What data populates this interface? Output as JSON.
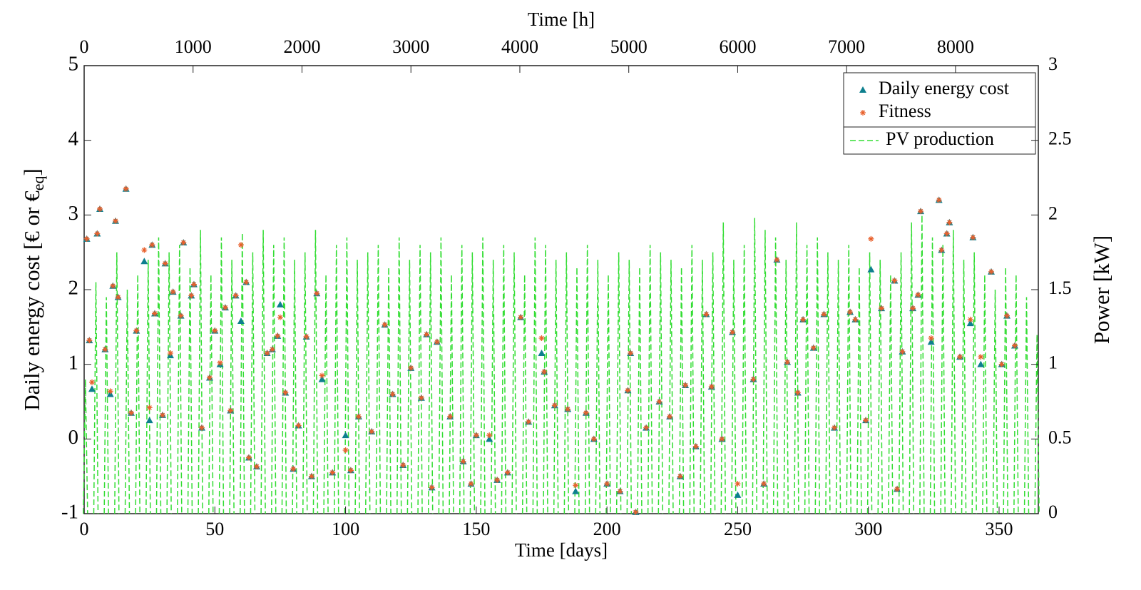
{
  "chart_data": {
    "type": "scatter",
    "xlabel": "Time [days]",
    "x2label": "Time [h]",
    "ylabel": [
      "Daily energy cost [€ or €",
      "eq",
      "]"
    ],
    "y2label": "Power [kW]",
    "xlim": [
      0,
      365
    ],
    "xticks": [
      0,
      50,
      100,
      150,
      200,
      250,
      300,
      350
    ],
    "x2lim": [
      0,
      8760
    ],
    "x2ticks": [
      0,
      1000,
      2000,
      3000,
      4000,
      5000,
      6000,
      7000,
      8000
    ],
    "ylim": [
      -1,
      5
    ],
    "yticks": [
      -1,
      0,
      1,
      2,
      3,
      4,
      5
    ],
    "y2lim": [
      0,
      3
    ],
    "y2ticks": [
      0,
      0.5,
      1,
      1.5,
      2,
      2.5,
      3
    ],
    "legend": "upper right",
    "series": [
      {
        "name": "Daily energy cost",
        "color": "#0e7f8e",
        "marker": "triangle",
        "x": [
          1,
          2,
          3,
          5,
          6,
          8,
          10,
          11,
          12,
          13,
          16,
          18,
          20,
          23,
          25,
          26,
          27,
          30,
          31,
          33,
          34,
          37,
          38,
          41,
          42,
          45,
          48,
          50,
          52,
          54,
          56,
          58,
          60,
          62,
          63,
          66,
          70,
          72,
          74,
          75,
          77,
          80,
          82,
          85,
          87,
          89,
          91,
          95,
          100,
          102,
          105,
          110,
          115,
          118,
          122,
          125,
          129,
          131,
          133,
          135,
          140,
          145,
          148,
          150,
          155,
          158,
          162,
          167,
          170,
          175,
          176,
          180,
          185,
          188,
          192,
          195,
          200,
          205,
          208,
          209,
          211,
          215,
          220,
          224,
          228,
          230,
          234,
          238,
          240,
          244,
          248,
          250,
          256,
          260,
          265,
          269,
          273,
          275,
          279,
          283,
          287,
          293,
          295,
          299,
          301,
          305,
          310,
          311,
          313,
          317,
          319,
          320,
          324,
          327,
          328,
          330,
          331,
          335,
          339,
          340,
          343,
          347,
          351,
          353,
          356
        ],
        "values": [
          2.68,
          1.32,
          0.67,
          2.75,
          3.08,
          1.2,
          0.6,
          2.05,
          2.92,
          1.9,
          3.35,
          0.35,
          1.45,
          2.38,
          0.25,
          2.6,
          1.68,
          0.32,
          2.35,
          1.12,
          1.97,
          1.65,
          2.63,
          1.92,
          2.07,
          0.15,
          0.82,
          1.45,
          1.0,
          1.76,
          0.38,
          1.92,
          1.58,
          2.1,
          -0.25,
          -0.37,
          1.15,
          1.2,
          1.38,
          1.8,
          0.62,
          -0.4,
          0.18,
          1.37,
          -0.5,
          1.95,
          0.8,
          -0.45,
          0.05,
          -0.42,
          0.3,
          0.1,
          1.53,
          0.6,
          -0.35,
          0.95,
          0.55,
          1.4,
          -0.65,
          1.3,
          0.3,
          -0.3,
          -0.6,
          0.05,
          0.0,
          -0.55,
          -0.45,
          1.63,
          0.23,
          1.15,
          0.9,
          0.45,
          0.4,
          -0.7,
          0.35,
          0.0,
          -0.6,
          -0.7,
          0.65,
          1.15,
          -0.98,
          0.15,
          0.5,
          0.3,
          -0.5,
          0.72,
          -0.1,
          1.67,
          0.7,
          0.0,
          1.43,
          -0.75,
          0.8,
          -0.6,
          2.4,
          1.03,
          0.62,
          1.6,
          1.22,
          1.67,
          0.15,
          1.7,
          1.6,
          0.25,
          2.27,
          1.75,
          2.12,
          -0.67,
          1.17,
          1.75,
          1.93,
          3.05,
          1.3,
          3.2,
          2.53,
          2.75,
          2.9,
          1.1,
          1.55,
          2.7,
          1.0,
          2.24,
          1.0,
          1.65,
          1.25
        ]
      },
      {
        "name": "Fitness",
        "color": "#e8602c",
        "marker": "asterisk",
        "x": [
          1,
          2,
          3,
          5,
          6,
          8,
          10,
          11,
          12,
          13,
          16,
          18,
          20,
          23,
          25,
          26,
          27,
          30,
          31,
          33,
          34,
          37,
          38,
          41,
          42,
          45,
          48,
          50,
          52,
          54,
          56,
          58,
          60,
          62,
          63,
          66,
          70,
          72,
          74,
          75,
          77,
          80,
          82,
          85,
          87,
          89,
          91,
          95,
          100,
          102,
          105,
          110,
          115,
          118,
          122,
          125,
          129,
          131,
          133,
          135,
          140,
          145,
          148,
          150,
          155,
          158,
          162,
          167,
          170,
          175,
          176,
          180,
          185,
          188,
          192,
          195,
          200,
          205,
          208,
          209,
          211,
          215,
          220,
          224,
          228,
          230,
          234,
          238,
          240,
          244,
          248,
          250,
          256,
          260,
          265,
          269,
          273,
          275,
          279,
          283,
          287,
          293,
          295,
          299,
          301,
          305,
          310,
          311,
          313,
          317,
          319,
          320,
          324,
          327,
          328,
          330,
          331,
          335,
          339,
          340,
          343,
          347,
          351,
          353,
          356
        ],
        "values": [
          2.68,
          1.32,
          0.76,
          2.75,
          3.08,
          1.2,
          0.64,
          2.05,
          2.92,
          1.9,
          3.35,
          0.35,
          1.45,
          2.53,
          0.42,
          2.6,
          1.68,
          0.32,
          2.35,
          1.15,
          1.97,
          1.65,
          2.63,
          1.92,
          2.07,
          0.15,
          0.82,
          1.45,
          1.02,
          1.76,
          0.38,
          1.92,
          2.6,
          2.1,
          -0.25,
          -0.37,
          1.15,
          1.2,
          1.38,
          1.63,
          0.62,
          -0.4,
          0.18,
          1.37,
          -0.5,
          1.95,
          0.85,
          -0.45,
          -0.15,
          -0.42,
          0.3,
          0.1,
          1.53,
          0.6,
          -0.35,
          0.95,
          0.55,
          1.4,
          -0.65,
          1.3,
          0.3,
          -0.3,
          -0.6,
          0.05,
          0.05,
          -0.55,
          -0.45,
          1.63,
          0.23,
          1.35,
          0.9,
          0.45,
          0.4,
          -0.62,
          0.35,
          0.0,
          -0.6,
          -0.7,
          0.65,
          1.15,
          -0.98,
          0.15,
          0.5,
          0.3,
          -0.5,
          0.72,
          -0.1,
          1.67,
          0.7,
          0.0,
          1.43,
          -0.6,
          0.8,
          -0.6,
          2.4,
          1.03,
          0.62,
          1.6,
          1.22,
          1.67,
          0.15,
          1.7,
          1.6,
          0.25,
          2.68,
          1.75,
          2.12,
          -0.67,
          1.17,
          1.75,
          1.93,
          3.05,
          1.35,
          3.2,
          2.53,
          2.75,
          2.9,
          1.1,
          1.6,
          2.7,
          1.1,
          2.24,
          1.0,
          1.65,
          1.25
        ]
      },
      {
        "name": "PV production",
        "color": "#33dd33",
        "axis": "y2",
        "xaxis": "x2",
        "x": [
          12,
          108,
          204,
          300,
          396,
          492,
          588,
          684,
          780,
          876,
          972,
          1068,
          1164,
          1260,
          1356,
          1452,
          1548,
          1644,
          1740,
          1836,
          1932,
          2028,
          2124,
          2220,
          2316,
          2412,
          2508,
          2604,
          2700,
          2796,
          2892,
          2988,
          3084,
          3180,
          3276,
          3372,
          3468,
          3564,
          3660,
          3756,
          3852,
          3948,
          4044,
          4140,
          4236,
          4332,
          4428,
          4524,
          4620,
          4716,
          4812,
          4908,
          5004,
          5100,
          5196,
          5292,
          5388,
          5484,
          5580,
          5676,
          5772,
          5868,
          5964,
          6060,
          6156,
          6252,
          6348,
          6444,
          6540,
          6636,
          6732,
          6828,
          6924,
          7020,
          7116,
          7212,
          7308,
          7404,
          7500,
          7596,
          7692,
          7788,
          7884,
          7980,
          8076,
          8172,
          8268,
          8364,
          8460,
          8556,
          8652,
          8748
        ],
        "values": [
          0.9,
          1.55,
          1.45,
          1.75,
          1.5,
          1.6,
          1.7,
          1.85,
          1.75,
          1.8,
          1.65,
          1.9,
          1.6,
          1.85,
          1.7,
          1.88,
          1.75,
          1.9,
          1.8,
          1.85,
          1.7,
          1.75,
          1.9,
          1.6,
          1.8,
          1.85,
          1.7,
          1.75,
          1.8,
          1.65,
          1.85,
          1.7,
          1.8,
          1.75,
          1.85,
          1.6,
          1.8,
          1.75,
          1.85,
          1.7,
          1.8,
          1.75,
          1.6,
          1.85,
          1.8,
          1.7,
          1.75,
          1.65,
          1.8,
          1.7,
          1.6,
          1.75,
          1.7,
          1.65,
          1.8,
          1.75,
          1.7,
          1.65,
          1.8,
          1.7,
          1.75,
          1.95,
          1.7,
          1.8,
          1.98,
          1.9,
          1.85,
          1.7,
          1.95,
          1.8,
          1.85,
          1.75,
          1.7,
          1.8,
          1.65,
          1.75,
          1.7,
          1.6,
          1.75,
          1.95,
          2.0,
          1.85,
          1.8,
          1.9,
          1.7,
          1.75,
          1.6,
          1.5,
          1.65,
          1.6,
          1.45,
          1.2
        ]
      }
    ]
  }
}
